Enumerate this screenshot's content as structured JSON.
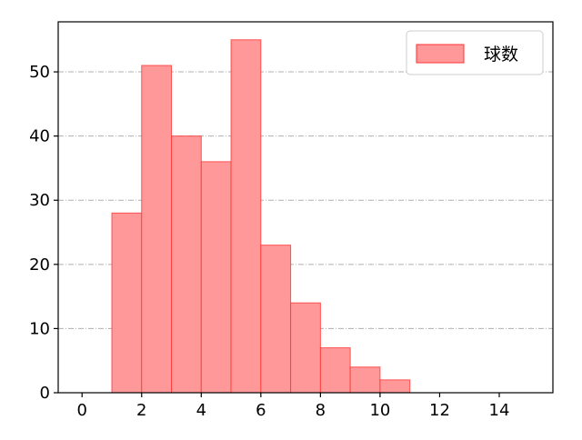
{
  "chart_data": {
    "type": "bar",
    "subtype": "histogram",
    "bin_edges": [
      1,
      2,
      3,
      4,
      5,
      6,
      7,
      8,
      9,
      10,
      11
    ],
    "series": [
      {
        "name": "球数",
        "values": [
          28,
          51,
          40,
          36,
          55,
          23,
          14,
          7,
          4,
          2
        ],
        "color": "#ff9999",
        "edge_color": "#ff3333"
      }
    ],
    "xlim": [
      -0.8,
      15.8
    ],
    "ylim": [
      0,
      57.8
    ],
    "xticks": [
      0,
      2,
      4,
      6,
      8,
      10,
      12,
      14
    ],
    "yticks": [
      0,
      10,
      20,
      30,
      40,
      50
    ],
    "grid": {
      "axis": "y",
      "style": "dash-dot",
      "color": "#b0b0b0"
    },
    "legend": {
      "placement": "top-right",
      "entries": [
        "球数"
      ]
    },
    "title": "",
    "xlabel": "",
    "ylabel": ""
  }
}
